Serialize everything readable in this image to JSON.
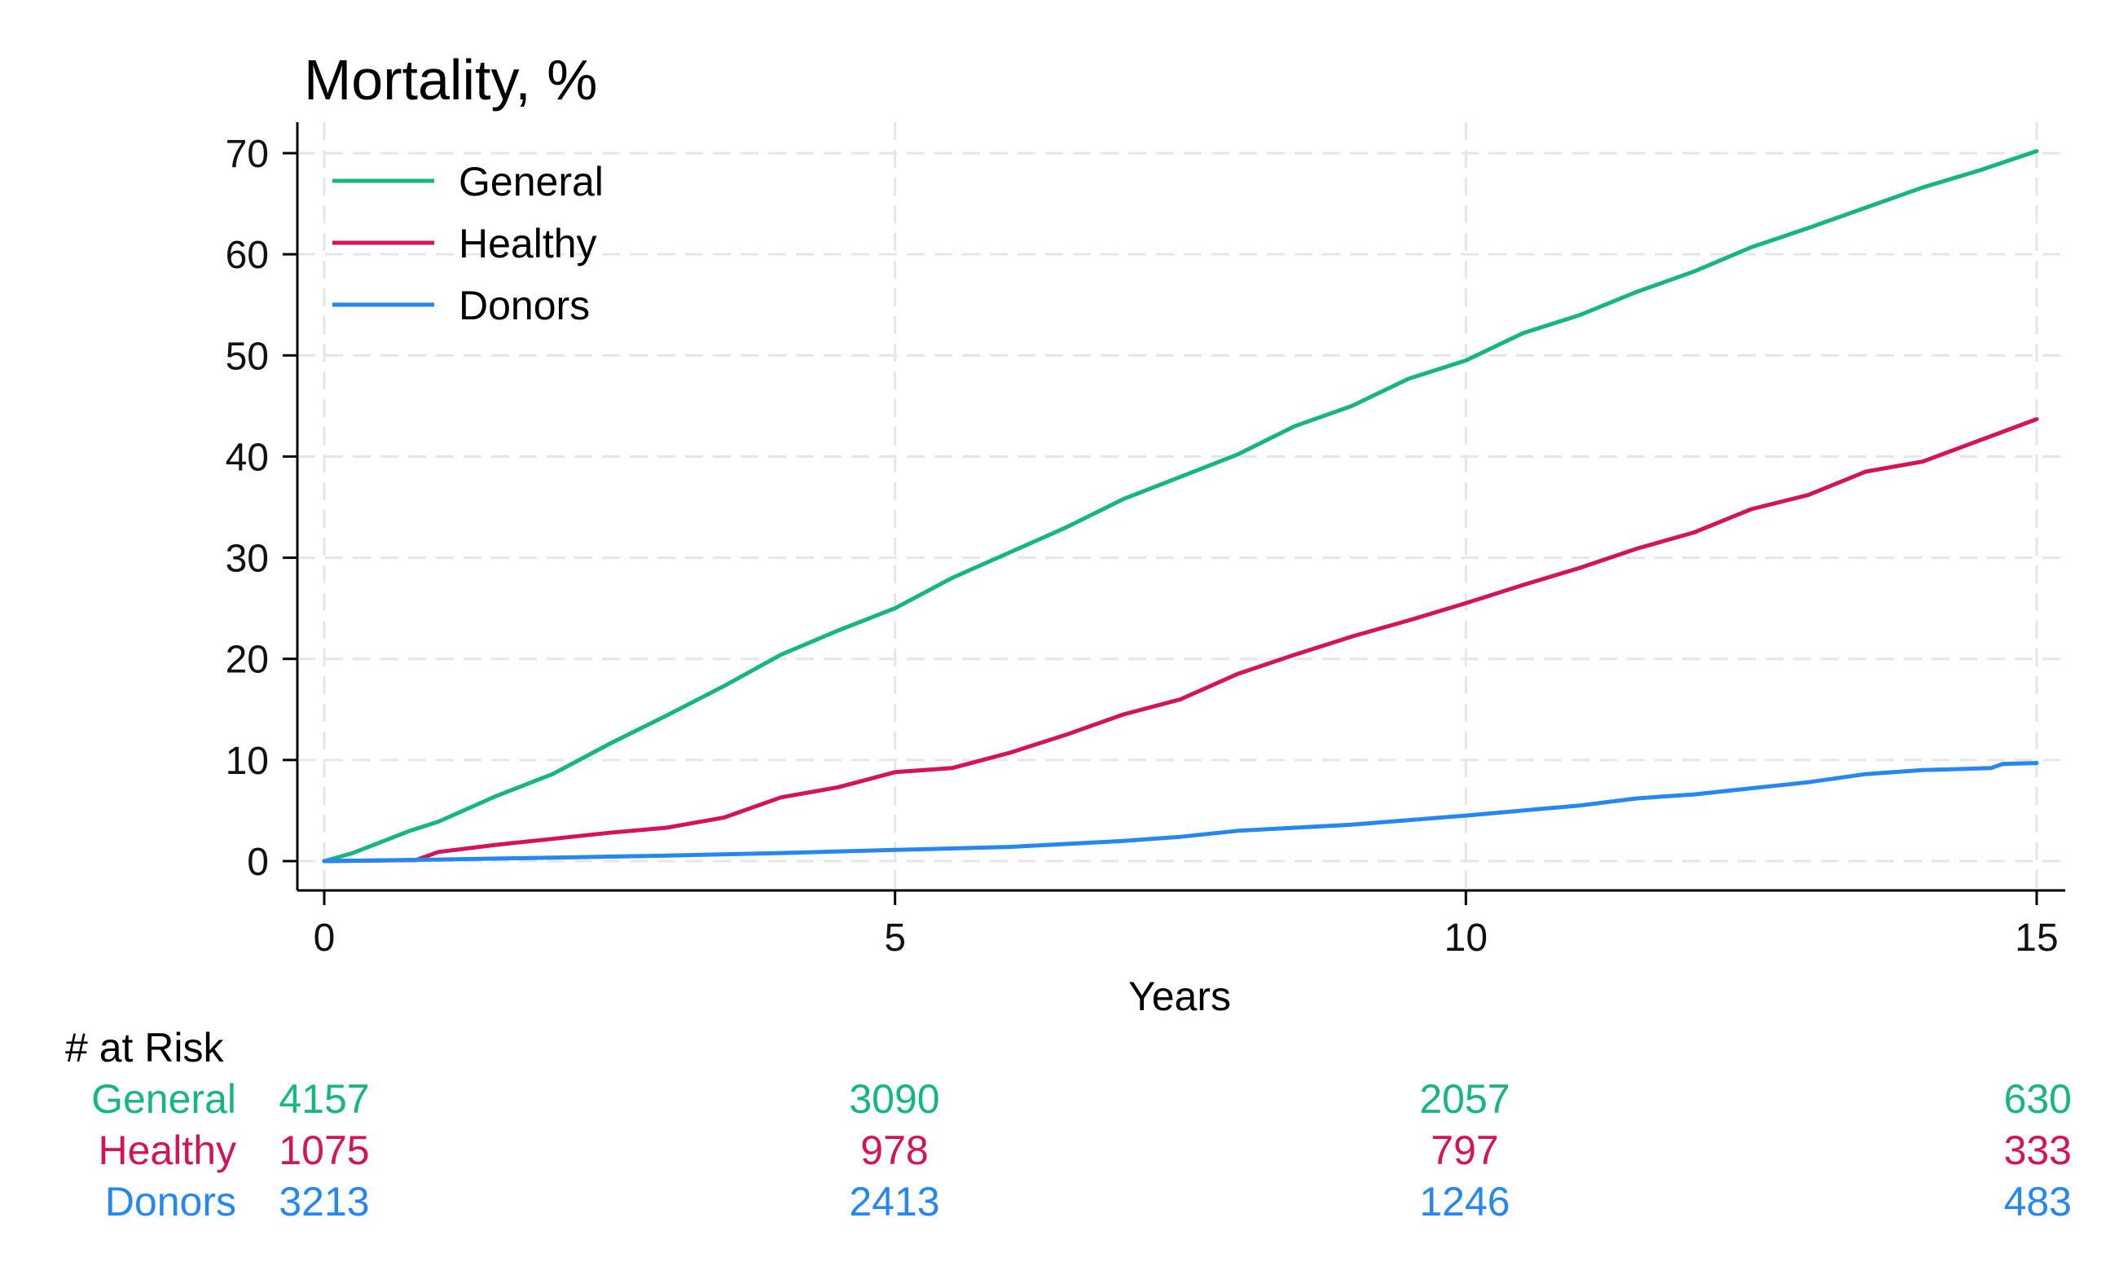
{
  "chart_data": {
    "type": "line",
    "title": "Mortality, %",
    "xlabel": "Years",
    "ylabel": "",
    "xlim": [
      0,
      15
    ],
    "ylim": [
      0,
      70
    ],
    "x_ticks": [
      "0",
      "5",
      "10",
      "15"
    ],
    "y_ticks": [
      "0",
      "10",
      "20",
      "30",
      "40",
      "50",
      "60",
      "70"
    ],
    "grid": true,
    "legend_position": "top-left",
    "series": [
      {
        "name": "General",
        "color": "#17b57f",
        "points": [
          [
            0,
            0
          ],
          [
            0.25,
            0.8
          ],
          [
            0.5,
            1.9
          ],
          [
            0.75,
            3.0
          ],
          [
            1,
            3.9
          ],
          [
            1.5,
            6.4
          ],
          [
            2,
            8.6
          ],
          [
            2.5,
            11.6
          ],
          [
            3,
            14.4
          ],
          [
            3.5,
            17.3
          ],
          [
            4,
            20.4
          ],
          [
            4.5,
            22.8
          ],
          [
            5,
            25.0
          ],
          [
            5.5,
            28.0
          ],
          [
            6,
            30.5
          ],
          [
            6.5,
            33.0
          ],
          [
            7,
            35.8
          ],
          [
            7.5,
            38.0
          ],
          [
            8,
            40.2
          ],
          [
            8.5,
            43.0
          ],
          [
            9,
            45.0
          ],
          [
            9.5,
            47.7
          ],
          [
            10,
            49.5
          ],
          [
            10.5,
            52.2
          ],
          [
            11,
            54.0
          ],
          [
            11.5,
            56.3
          ],
          [
            12,
            58.3
          ],
          [
            12.5,
            60.7
          ],
          [
            13,
            62.6
          ],
          [
            13.5,
            64.6
          ],
          [
            14,
            66.6
          ],
          [
            14.5,
            68.3
          ],
          [
            15,
            70.2
          ]
        ]
      },
      {
        "name": "Healthy",
        "color": "#d4145a",
        "points": [
          [
            0,
            0
          ],
          [
            0.8,
            0.1
          ],
          [
            1,
            0.9
          ],
          [
            1.5,
            1.6
          ],
          [
            2,
            2.2
          ],
          [
            2.5,
            2.8
          ],
          [
            3,
            3.3
          ],
          [
            3.5,
            4.3
          ],
          [
            4,
            6.3
          ],
          [
            4.5,
            7.3
          ],
          [
            5,
            8.8
          ],
          [
            5.5,
            9.2
          ],
          [
            6,
            10.7
          ],
          [
            6.5,
            12.5
          ],
          [
            7,
            14.5
          ],
          [
            7.5,
            16.0
          ],
          [
            8,
            18.5
          ],
          [
            8.5,
            20.4
          ],
          [
            9,
            22.2
          ],
          [
            9.5,
            23.8
          ],
          [
            10,
            25.5
          ],
          [
            10.5,
            27.3
          ],
          [
            11,
            29.0
          ],
          [
            11.5,
            30.9
          ],
          [
            12,
            32.5
          ],
          [
            12.5,
            34.8
          ],
          [
            13,
            36.2
          ],
          [
            13.5,
            38.5
          ],
          [
            14,
            39.5
          ],
          [
            14.5,
            41.6
          ],
          [
            15,
            43.7
          ]
        ]
      },
      {
        "name": "Donors",
        "color": "#2787f0",
        "points": [
          [
            0,
            0
          ],
          [
            1,
            0.15
          ],
          [
            2,
            0.35
          ],
          [
            3,
            0.55
          ],
          [
            4,
            0.8
          ],
          [
            5,
            1.1
          ],
          [
            6,
            1.4
          ],
          [
            7,
            2.0
          ],
          [
            7.5,
            2.4
          ],
          [
            8,
            3.0
          ],
          [
            9,
            3.6
          ],
          [
            10,
            4.5
          ],
          [
            11,
            5.5
          ],
          [
            11.5,
            6.2
          ],
          [
            12,
            6.6
          ],
          [
            12.5,
            7.2
          ],
          [
            13,
            7.8
          ],
          [
            13.5,
            8.6
          ],
          [
            14,
            9.0
          ],
          [
            14.6,
            9.2
          ],
          [
            14.7,
            9.6
          ],
          [
            15,
            9.7
          ]
        ]
      }
    ]
  },
  "risk_table": {
    "header": "# at Risk",
    "rows": [
      {
        "name": "General",
        "color": "#17b57f",
        "values": [
          "4157",
          "3090",
          "2057",
          "630"
        ]
      },
      {
        "name": "Healthy",
        "color": "#d4145a",
        "values": [
          "1075",
          "978",
          "797",
          "333"
        ]
      },
      {
        "name": "Donors",
        "color": "#2787f0",
        "values": [
          "3213",
          "2413",
          "1246",
          "483"
        ]
      }
    ]
  }
}
